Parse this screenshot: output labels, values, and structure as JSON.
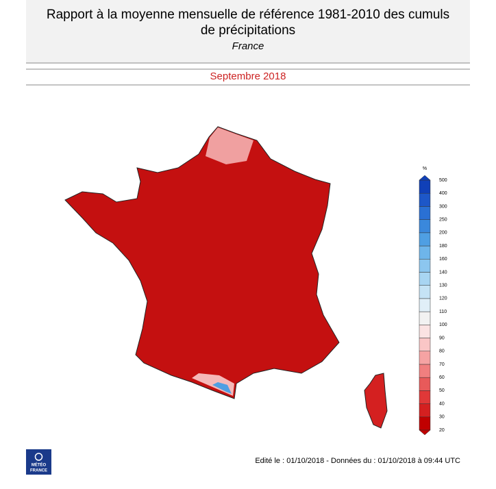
{
  "header": {
    "title_lines": [
      "Rapport à la moyenne mensuelle de référence 1981-2010 des cumuls",
      "de précipitations"
    ],
    "subtitle": "France",
    "period": "Septembre 2018"
  },
  "legend": {
    "unit": "%",
    "levels": [
      20,
      30,
      40,
      50,
      60,
      70,
      80,
      90,
      100,
      110,
      120,
      130,
      140,
      160,
      180,
      200,
      250,
      300,
      400,
      500
    ],
    "colors": [
      "#c00000",
      "#d42020",
      "#e03838",
      "#e85a5a",
      "#f07f7f",
      "#f5a3a3",
      "#fac6c6",
      "#fbe3e3",
      "#f2f2f2",
      "#e0eff8",
      "#c5e3f5",
      "#a8d5f2",
      "#8cc6ef",
      "#6eb5ea",
      "#4f9fe3",
      "#3a88dc",
      "#2a70d4",
      "#1d57c8",
      "#1040b8"
    ]
  },
  "footer": {
    "text": "Edité le : 01/10/2018 - Données du : 01/10/2018 à 09:44 UTC"
  },
  "logo": {
    "lines": [
      "MÉTÉO",
      "FRANCE"
    ]
  }
}
